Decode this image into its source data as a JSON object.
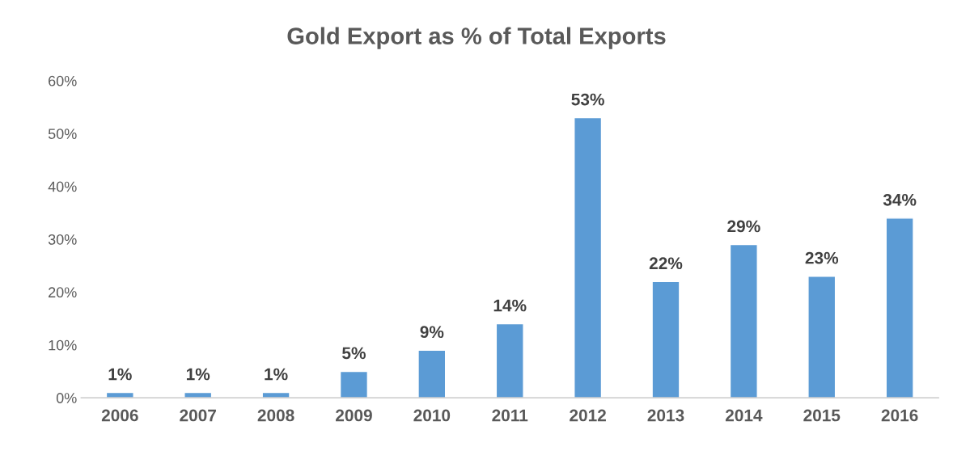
{
  "chart_data": {
    "type": "bar",
    "title": "Gold Export as % of Total Exports",
    "categories": [
      "2006",
      "2007",
      "2008",
      "2009",
      "2010",
      "2011",
      "2012",
      "2013",
      "2014",
      "2015",
      "2016"
    ],
    "values": [
      1,
      1,
      1,
      5,
      9,
      14,
      53,
      22,
      29,
      23,
      34
    ],
    "value_labels": [
      "1%",
      "1%",
      "1%",
      "5%",
      "9%",
      "14%",
      "53%",
      "22%",
      "29%",
      "23%",
      "34%"
    ],
    "color": "#5b9bd5",
    "ylim": [
      0,
      60
    ],
    "yticks": [
      {
        "value": 0,
        "label": "0%"
      },
      {
        "value": 10,
        "label": "10%"
      },
      {
        "value": 20,
        "label": "20%"
      },
      {
        "value": 30,
        "label": "30%"
      },
      {
        "value": 40,
        "label": "40%"
      },
      {
        "value": 50,
        "label": "50%"
      },
      {
        "value": 60,
        "label": "60%"
      }
    ],
    "grid": false,
    "legend": false
  }
}
